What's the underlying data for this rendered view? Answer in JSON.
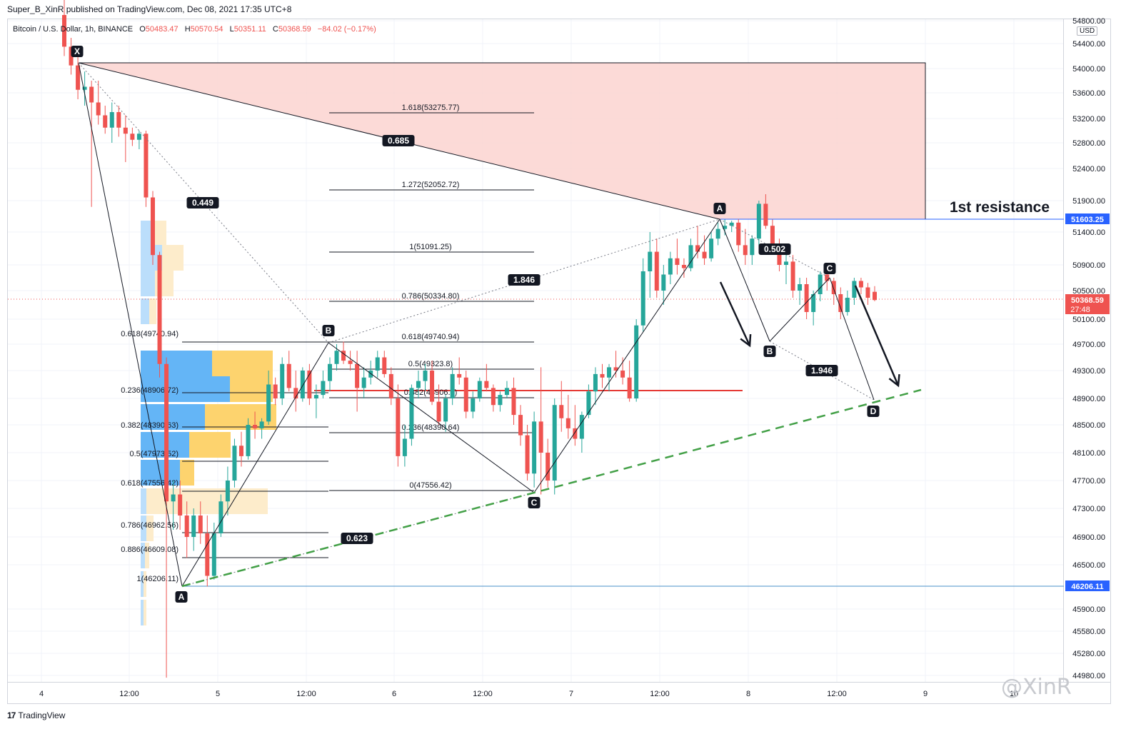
{
  "publisher": "Super_B_XinR published on TradingView.com, Dec 08, 2021 17:35 UTC+8",
  "header": {
    "symbol": "Bitcoin / U.S. Dollar, 1h, BINANCE",
    "open_label": "O",
    "open": "50483.47",
    "high_label": "H",
    "high": "50570.54",
    "low_label": "L",
    "low": "50351.11",
    "close_label": "C",
    "close": "50368.59",
    "change": "−84.02 (−0.17%)"
  },
  "currency": "USD",
  "footer_brand": "TradingView",
  "watermark": "@XinR",
  "colors": {
    "up": "#26a69a",
    "down": "#ef5350",
    "pattern_fill": "#fbd3d0",
    "resistance": "#2962ff"
  },
  "annotation": "1st resistance",
  "chart_data": {
    "type": "candlestick",
    "y_axis_ticks": [
      "54800.00",
      "54400.00",
      "54000.00",
      "53600.00",
      "53200.00",
      "52800.00",
      "52400.00",
      "51900.00",
      "51400.00",
      "50900.00",
      "50500.00",
      "50100.00",
      "49700.00",
      "49300.00",
      "48900.00",
      "48500.00",
      "48100.00",
      "47700.00",
      "47300.00",
      "46900.00",
      "46500.00",
      "45900.00",
      "45580.00",
      "45280.00",
      "44980.00"
    ],
    "x_axis_ticks": [
      "4",
      "12:00",
      "5",
      "12:00",
      "6",
      "12:00",
      "7",
      "12:00",
      "8",
      "12:00",
      "9",
      "10"
    ],
    "price_labels": [
      {
        "value": "51603.25",
        "color": "#2962ff"
      },
      {
        "value": "50368.59",
        "sub": "27:48",
        "color": "#ef5350"
      },
      {
        "value": "46206.11",
        "color": "#2962ff"
      }
    ],
    "pattern_points": [
      "X",
      "A",
      "B",
      "C",
      "A",
      "B",
      "C",
      "D"
    ],
    "ratio_labels": [
      "0.685",
      "0.449",
      "1.846",
      "0.623",
      "0.502",
      "1.946"
    ],
    "fib_left": [
      "0.618(49740.94)",
      "0.236(48906.72)",
      "0.382(48390.63)",
      "0.5(47973.52)",
      "0.618(47556.42)",
      "0.786(46962.56)",
      "0.886(46609.08)",
      "1(46206.11)"
    ],
    "fib_right": [
      "1.618(53275.77)",
      "1.272(52052.72)",
      "1(51091.25)",
      "0.786(50334.80)",
      "0.618(49740.94)",
      "0.5(49323.8)",
      "0.382(48906.7)",
      "0.236(48390.64)",
      "0(47556.42)"
    ],
    "candles": [
      [
        54900,
        55350,
        54200,
        54350
      ],
      [
        54350,
        54500,
        53900,
        54050
      ],
      [
        54050,
        54300,
        53500,
        53650
      ],
      [
        53650,
        53950,
        53400,
        53700
      ],
      [
        53700,
        53800,
        51800,
        53450
      ],
      [
        53450,
        53800,
        53100,
        53250
      ],
      [
        53250,
        53400,
        52950,
        53050
      ],
      [
        53050,
        53450,
        52800,
        53300
      ],
      [
        53300,
        53400,
        52900,
        53050
      ],
      [
        53050,
        53250,
        52500,
        52950
      ],
      [
        52950,
        53050,
        52750,
        52850
      ],
      [
        52850,
        53000,
        52700,
        52950
      ],
      [
        52950,
        53000,
        51800,
        51950
      ],
      [
        51950,
        52050,
        50900,
        51050
      ],
      [
        51050,
        51100,
        49200,
        49400
      ],
      [
        49400,
        49500,
        44950,
        47400
      ],
      [
        47400,
        47700,
        47000,
        47500
      ],
      [
        47500,
        47700,
        47000,
        47200
      ],
      [
        47200,
        47400,
        46600,
        46900
      ],
      [
        46900,
        47300,
        46700,
        47200
      ],
      [
        47200,
        47400,
        46800,
        46950
      ],
      [
        46950,
        47200,
        46206,
        46350
      ],
      [
        46350,
        47100,
        46300,
        46950
      ],
      [
        46950,
        47500,
        46900,
        47400
      ],
      [
        47400,
        47900,
        47200,
        47700
      ],
      [
        47700,
        48300,
        47600,
        48200
      ],
      [
        48200,
        48400,
        47900,
        48050
      ],
      [
        48050,
        48600,
        48000,
        48500
      ],
      [
        48500,
        48700,
        48300,
        48450
      ],
      [
        48450,
        48600,
        48300,
        48550
      ],
      [
        48550,
        49300,
        48500,
        49100
      ],
      [
        49100,
        49200,
        48800,
        48900
      ],
      [
        48900,
        49500,
        48800,
        49400
      ],
      [
        49400,
        49600,
        49000,
        49050
      ],
      [
        49050,
        49300,
        48700,
        48900
      ],
      [
        48900,
        49350,
        48850,
        49300
      ],
      [
        49300,
        49400,
        48800,
        48900
      ],
      [
        48900,
        49100,
        48600,
        48950
      ],
      [
        48950,
        49300,
        48900,
        49150
      ],
      [
        49150,
        49500,
        49000,
        49400
      ],
      [
        49400,
        49700,
        49300,
        49600
      ],
      [
        49600,
        49740,
        49400,
        49450
      ],
      [
        49450,
        49600,
        49300,
        49400
      ],
      [
        49400,
        49600,
        48700,
        49050
      ],
      [
        49050,
        49350,
        48900,
        49200
      ],
      [
        49200,
        49450,
        49100,
        49300
      ],
      [
        49300,
        49600,
        49200,
        49500
      ],
      [
        49500,
        49600,
        49200,
        49250
      ],
      [
        49250,
        49350,
        48800,
        48900
      ],
      [
        48900,
        49100,
        47900,
        48050
      ],
      [
        48050,
        48500,
        47900,
        48300
      ],
      [
        48300,
        49100,
        48200,
        49050
      ],
      [
        49050,
        49300,
        48900,
        49150
      ],
      [
        49150,
        49400,
        49000,
        49300
      ],
      [
        49300,
        49450,
        48800,
        48850
      ],
      [
        48850,
        49100,
        48500,
        48550
      ],
      [
        48550,
        48950,
        48400,
        48900
      ],
      [
        48900,
        49350,
        48800,
        49250
      ],
      [
        49250,
        49500,
        49100,
        49200
      ],
      [
        49200,
        49300,
        48600,
        48700
      ],
      [
        48700,
        49000,
        48600,
        48900
      ],
      [
        48900,
        49200,
        48850,
        49150
      ],
      [
        49150,
        49400,
        49000,
        49050
      ],
      [
        49050,
        49100,
        48700,
        48800
      ],
      [
        48800,
        49000,
        48700,
        48950
      ],
      [
        48950,
        49150,
        48900,
        49050
      ],
      [
        49050,
        49200,
        48500,
        48650
      ],
      [
        48650,
        48800,
        48200,
        48350
      ],
      [
        48350,
        48500,
        47700,
        47800
      ],
      [
        47800,
        48700,
        47600,
        48550
      ],
      [
        48550,
        49350,
        47500,
        48100
      ],
      [
        48100,
        48300,
        47600,
        47700
      ],
      [
        47700,
        48900,
        47500,
        48800
      ],
      [
        48800,
        49150,
        48400,
        48600
      ],
      [
        48600,
        48950,
        48300,
        48450
      ],
      [
        48450,
        48800,
        48200,
        48300
      ],
      [
        48300,
        48700,
        48100,
        48650
      ],
      [
        48650,
        49100,
        48600,
        49000
      ],
      [
        49000,
        49350,
        48800,
        49250
      ],
      [
        49250,
        49400,
        49050,
        49200
      ],
      [
        49200,
        49400,
        49000,
        49350
      ],
      [
        49350,
        49600,
        49200,
        49300
      ],
      [
        49300,
        49500,
        49100,
        49200
      ],
      [
        49200,
        49450,
        48850,
        48900
      ],
      [
        48900,
        50100,
        48850,
        50000
      ],
      [
        50000,
        51000,
        49900,
        50800
      ],
      [
        50800,
        51400,
        50400,
        51100
      ],
      [
        51100,
        51300,
        50400,
        50500
      ],
      [
        50500,
        50900,
        50300,
        50750
      ],
      [
        50750,
        51100,
        50600,
        51000
      ],
      [
        51000,
        51300,
        50750,
        50900
      ],
      [
        50900,
        51000,
        50700,
        50850
      ],
      [
        50850,
        51300,
        50800,
        51200
      ],
      [
        51200,
        51500,
        51000,
        51100
      ],
      [
        51100,
        51350,
        50900,
        51000
      ],
      [
        51000,
        51400,
        50950,
        51300
      ],
      [
        51300,
        51550,
        51200,
        51450
      ],
      [
        51450,
        51600,
        51350,
        51500
      ],
      [
        51500,
        51580,
        51400,
        51550
      ],
      [
        51550,
        51603,
        51100,
        51200
      ],
      [
        51200,
        51450,
        50900,
        51050
      ],
      [
        51050,
        51350,
        50900,
        51300
      ],
      [
        51300,
        51900,
        51200,
        51850
      ],
      [
        51850,
        52000,
        51450,
        51500
      ],
      [
        51500,
        51600,
        51100,
        51200
      ],
      [
        51200,
        51300,
        50800,
        50900
      ],
      [
        50900,
        51100,
        50600,
        50950
      ],
      [
        50950,
        51050,
        50400,
        50500
      ],
      [
        50500,
        50700,
        50300,
        50600
      ],
      [
        50600,
        50700,
        50100,
        50200
      ],
      [
        50200,
        50500,
        50000,
        50450
      ],
      [
        50450,
        50800,
        50350,
        50750
      ],
      [
        50750,
        50900,
        50500,
        50650
      ],
      [
        50650,
        50700,
        50300,
        50450
      ],
      [
        50450,
        50550,
        50100,
        50200
      ],
      [
        50200,
        50500,
        50150,
        50400
      ],
      [
        50400,
        50700,
        50300,
        50650
      ],
      [
        50650,
        50700,
        50450,
        50550
      ],
      [
        50550,
        50620,
        50300,
        50400
      ],
      [
        50483,
        50570,
        50351,
        50368
      ]
    ]
  }
}
